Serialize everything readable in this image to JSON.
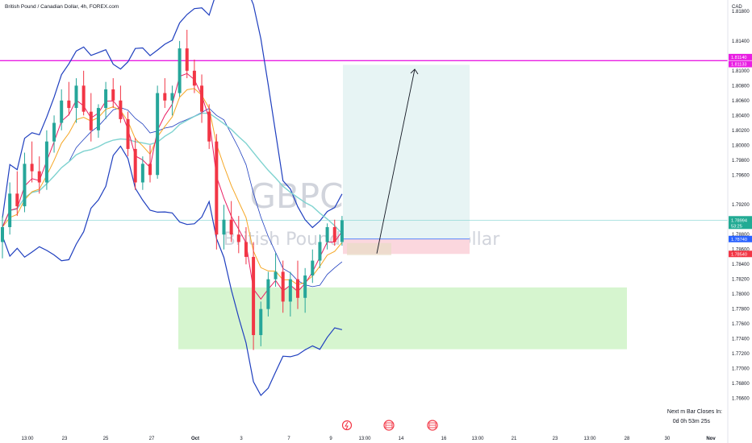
{
  "header": {
    "symbol_title": "British Pound / Canadian Dollar, 4h, FOREX.com",
    "currency": "CAD"
  },
  "watermark": {
    "ticker": "GBPCAD, 4h",
    "name": "British Pound / Canadian Dollar"
  },
  "price_tags": {
    "resistance_top": "1.81140",
    "resistance_bottom": "1.81133",
    "current_price": "1.78994",
    "countdown": "53:25",
    "entry": "1.78740",
    "stop": "1.78540"
  },
  "footer": {
    "next_bar_label": "Next m Bar Closes In:",
    "next_bar_time": "0d 0h 53m 25s"
  },
  "colors": {
    "resistance_line": "#e91ee3",
    "bollinger": "#1f3fbf",
    "ema_fast": "#e91e63",
    "ema_mid": "#f5a623",
    "sma_slow": "#7fd3d0",
    "up_candle": "#26a69a",
    "down_candle": "#f23645",
    "target_zone": "#e7f4f4",
    "stop_zone": "#fbd7de",
    "demand_zone": "#d6f5cf",
    "current_price_tag": "#22ab94",
    "entry_tag": "#2962ff",
    "stop_tag": "#f23645"
  },
  "chart_data": {
    "type": "candlestick",
    "ylim": [
      1.7652,
      1.8195
    ],
    "y_ticks": [
      "1.81800",
      "1.81400",
      "1.81000",
      "1.80800",
      "1.80600",
      "1.80400",
      "1.80200",
      "1.80000",
      "1.79800",
      "1.79600",
      "1.79200",
      "1.79000",
      "1.78800",
      "1.78600",
      "1.78400",
      "1.78200",
      "1.78000",
      "1.77800",
      "1.77600",
      "1.77400",
      "1.77200",
      "1.77000",
      "1.76800",
      "1.76600"
    ],
    "x_ticks": [
      "13:00",
      "23",
      "25",
      "27",
      "Oct",
      "3",
      "7",
      "9",
      "13:00",
      "14",
      "16",
      "13:00",
      "21",
      "23",
      "13:00",
      "28",
      "30",
      "Nov"
    ],
    "resistance_level": 1.81135,
    "current_price": 1.78994,
    "entry_price": 1.7874,
    "stop_price": 1.7854,
    "target_price": 1.8108,
    "demand_zone": [
      1.7726,
      1.7809
    ],
    "projection_target": 1.8102,
    "candles": [
      [
        1.787,
        1.7905,
        1.7848,
        1.789
      ],
      [
        1.789,
        1.795,
        1.788,
        1.7935
      ],
      [
        1.7935,
        1.7965,
        1.7905,
        1.7918
      ],
      [
        1.7918,
        1.799,
        1.791,
        1.7975
      ],
      [
        1.7975,
        1.8005,
        1.795,
        1.7965
      ],
      [
        1.7965,
        1.7985,
        1.7935,
        1.795
      ],
      [
        1.795,
        1.802,
        1.794,
        1.8005
      ],
      [
        1.8005,
        1.804,
        1.799,
        1.803
      ],
      [
        1.803,
        1.8075,
        1.802,
        1.806
      ],
      [
        1.806,
        1.8085,
        1.804,
        1.805
      ],
      [
        1.805,
        1.809,
        1.803,
        1.808
      ],
      [
        1.808,
        1.81,
        1.804,
        1.8045
      ],
      [
        1.8045,
        1.807,
        1.8005,
        1.802
      ],
      [
        1.802,
        1.8055,
        1.801,
        1.805
      ],
      [
        1.805,
        1.8085,
        1.8035,
        1.8075
      ],
      [
        1.8075,
        1.809,
        1.805,
        1.806
      ],
      [
        1.806,
        1.808,
        1.803,
        1.8035
      ],
      [
        1.8035,
        1.8045,
        1.7985,
        1.7995
      ],
      [
        1.7995,
        1.801,
        1.794,
        1.795
      ],
      [
        1.795,
        1.7985,
        1.794,
        1.7975
      ],
      [
        1.7975,
        1.8,
        1.795,
        1.796
      ],
      [
        1.796,
        1.808,
        1.7955,
        1.807
      ],
      [
        1.807,
        1.809,
        1.805,
        1.806
      ],
      [
        1.806,
        1.808,
        1.804,
        1.807
      ],
      [
        1.807,
        1.814,
        1.8065,
        1.813
      ],
      [
        1.813,
        1.8155,
        1.809,
        1.81
      ],
      [
        1.81,
        1.8115,
        1.807,
        1.808
      ],
      [
        1.808,
        1.8095,
        1.803,
        1.8045
      ],
      [
        1.8045,
        1.8055,
        1.7995,
        1.8005
      ],
      [
        1.8005,
        1.8015,
        1.786,
        1.788
      ],
      [
        1.788,
        1.792,
        1.786,
        1.79
      ],
      [
        1.79,
        1.7925,
        1.787,
        1.788
      ],
      [
        1.788,
        1.7905,
        1.7855,
        1.787
      ],
      [
        1.787,
        1.789,
        1.784,
        1.785
      ],
      [
        1.785,
        1.787,
        1.7725,
        1.7745
      ],
      [
        1.7745,
        1.779,
        1.773,
        1.778
      ],
      [
        1.778,
        1.783,
        1.777,
        1.782
      ],
      [
        1.782,
        1.7855,
        1.781,
        1.783
      ],
      [
        1.783,
        1.7845,
        1.7775,
        1.779
      ],
      [
        1.779,
        1.783,
        1.777,
        1.782
      ],
      [
        1.782,
        1.7845,
        1.778,
        1.7795
      ],
      [
        1.7795,
        1.7835,
        1.7775,
        1.7825
      ],
      [
        1.7825,
        1.786,
        1.7815,
        1.7845
      ],
      [
        1.7845,
        1.788,
        1.7835,
        1.787
      ],
      [
        1.787,
        1.7895,
        1.786,
        1.789
      ],
      [
        1.789,
        1.79,
        1.7865,
        1.787
      ],
      [
        1.787,
        1.7905,
        1.7865,
        1.7899
      ]
    ]
  }
}
